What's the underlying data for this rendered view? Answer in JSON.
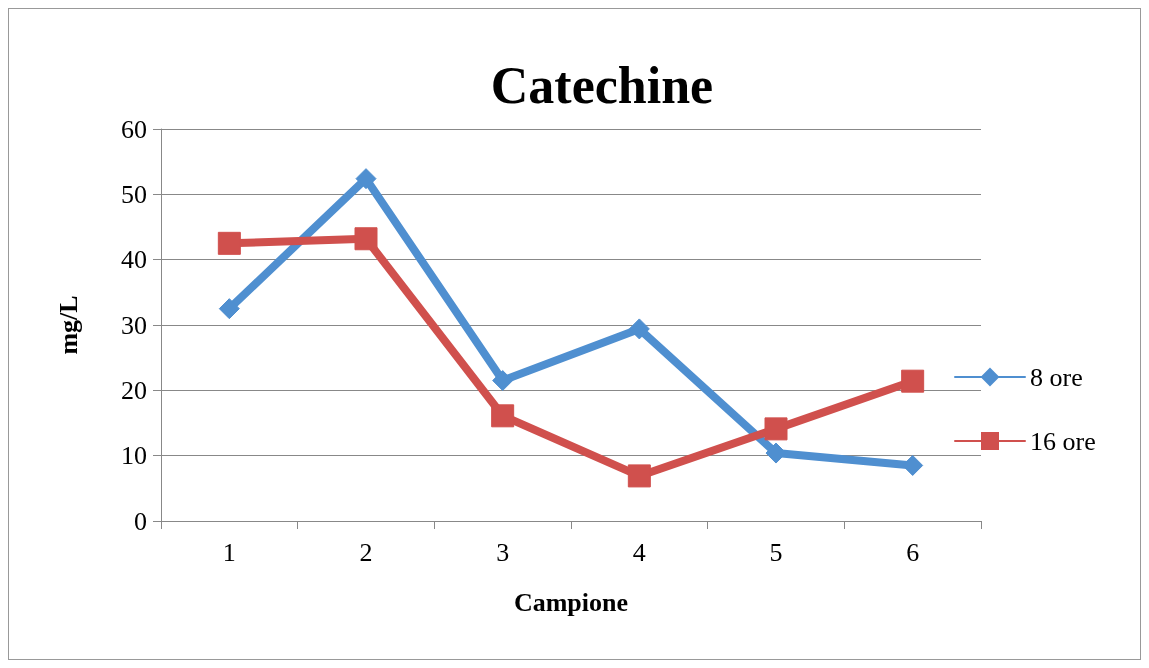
{
  "chart_data": {
    "type": "line",
    "title": "Catechine",
    "xlabel": "Campione",
    "ylabel": "mg/L",
    "categories": [
      "1",
      "2",
      "3",
      "4",
      "5",
      "6"
    ],
    "series": [
      {
        "name": "8 ore",
        "color": "#4f8fd0",
        "marker": "diamond",
        "values": [
          32.5,
          52.4,
          21.5,
          29.4,
          10.4,
          8.5
        ]
      },
      {
        "name": "16 ore",
        "color": "#d0504d",
        "marker": "square",
        "values": [
          42.5,
          43.2,
          16.1,
          6.9,
          14.1,
          21.4
        ]
      }
    ],
    "ylim": [
      0,
      60
    ],
    "yticks": [
      0,
      10,
      20,
      30,
      40,
      50,
      60
    ],
    "grid": "y",
    "legend": "right"
  }
}
